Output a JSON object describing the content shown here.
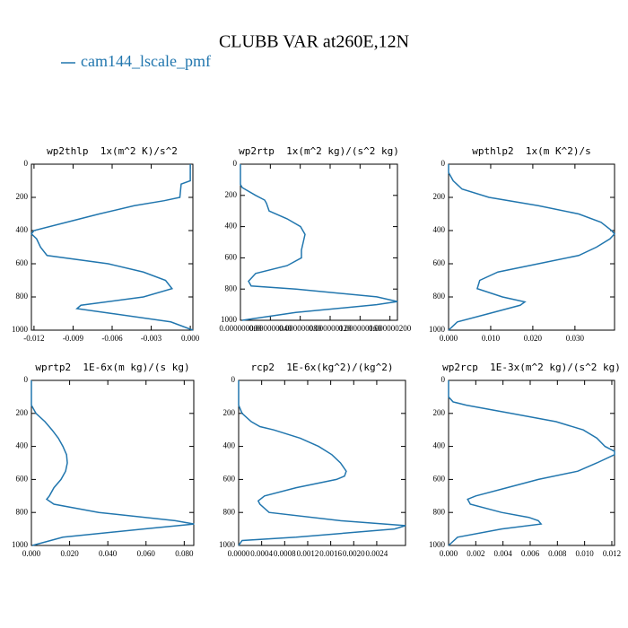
{
  "title": "CLUBB VAR at260E,12N",
  "chart_data": [
    {
      "type": "line",
      "title": "wp2thlp  1x(m^2 K)/s^2",
      "y": [
        0,
        100,
        120,
        200,
        220,
        250,
        300,
        350,
        400,
        420,
        450,
        500,
        550,
        600,
        650,
        700,
        750,
        800,
        850,
        870,
        900,
        950,
        1000
      ],
      "series": [
        {
          "name": "cam144_lscale_pmf",
          "color": "#2176ae",
          "values": [
            0,
            0,
            -0.0007,
            -0.0008,
            -0.002,
            -0.0043,
            -0.007,
            -0.0095,
            -0.012,
            -0.0122,
            -0.0118,
            -0.0115,
            -0.011,
            -0.0063,
            -0.0036,
            -0.0019,
            -0.0014,
            -0.0036,
            -0.0084,
            -0.0087,
            -0.006,
            -0.0015,
            0.0002
          ]
        }
      ],
      "xlim": [
        -0.0122,
        0.0002
      ],
      "xticks": [
        -0.012,
        -0.009,
        -0.006,
        -0.003,
        {
          "value": 0,
          "label": "0.000"
        }
      ],
      "ylim": [
        1000,
        0
      ],
      "yticks": [
        0,
        200,
        400,
        600,
        800,
        1000
      ]
    },
    {
      "type": "line",
      "title": "wp2rtp  1x(m^2 kg)/(s^2 kg)",
      "y": [
        0,
        130,
        150,
        200,
        230,
        250,
        300,
        350,
        400,
        450,
        500,
        550,
        600,
        650,
        700,
        750,
        780,
        800,
        850,
        880,
        900,
        950,
        1000
      ],
      "series": [
        {
          "name": "cam144_lscale_pmf",
          "color": "#2176ae",
          "values": [
            0,
            0,
            2.4e-09,
            2.04e-08,
            3.24e-08,
            3.48e-08,
            3.84e-08,
            6.24e-08,
            8.04e-08,
            8.64e-08,
            8.4e-08,
            8.16e-08,
            8.16e-08,
            6.24e-08,
            2.04e-08,
            1.08e-08,
            1.44e-08,
            7.44e-08,
            1.824e-07,
            2.1e-07,
            1.82e-07,
            7.4e-08,
            2.4e-09
          ]
        }
      ],
      "xlim": [
        0,
        2.1e-07
      ],
      "xticks": [
        {
          "value": 0,
          "label": "0.000000000"
        },
        {
          "value": 4e-08,
          "label": "0.000000040"
        },
        {
          "value": 8e-08,
          "label": "0.000000080"
        },
        {
          "value": 1.2e-07,
          "label": "0.000000120"
        },
        {
          "value": 1.6e-07,
          "label": "0.000000160"
        },
        {
          "value": 2e-07,
          "label": "0.000000200"
        }
      ],
      "ylim": [
        1000,
        0
      ],
      "yticks": [
        0,
        200,
        400,
        600,
        800,
        1000
      ]
    },
    {
      "type": "line",
      "title": "wpthlp2  1x(m K^2)/s",
      "y": [
        0,
        50,
        100,
        150,
        200,
        250,
        300,
        350,
        400,
        420,
        450,
        500,
        550,
        600,
        650,
        700,
        750,
        800,
        830,
        850,
        900,
        950,
        1000
      ],
      "series": [
        {
          "name": "cam144_lscale_pmf",
          "color": "#2176ae",
          "values": [
            0,
            0,
            0.0011,
            0.0032,
            0.0096,
            0.0213,
            0.0309,
            0.0362,
            0.0387,
            0.0394,
            0.0383,
            0.0351,
            0.0309,
            0.0213,
            0.0117,
            0.0074,
            0.0068,
            0.0128,
            0.0181,
            0.017,
            0.0096,
            0.0021,
            0
          ]
        }
      ],
      "xlim": [
        0,
        0.0394
      ],
      "xticks": [
        {
          "value": 0,
          "label": "0.000"
        },
        {
          "value": 0.01,
          "label": "0.010"
        },
        {
          "value": 0.02,
          "label": "0.020"
        },
        {
          "value": 0.03,
          "label": "0.030"
        }
      ],
      "ylim": [
        1000,
        0
      ],
      "yticks": [
        0,
        200,
        400,
        600,
        800,
        1000
      ]
    },
    {
      "type": "line",
      "title": "wprtp2  1E-6x(m kg)/(s kg)",
      "y": [
        0,
        150,
        200,
        250,
        300,
        350,
        400,
        450,
        500,
        550,
        600,
        650,
        700,
        720,
        750,
        800,
        850,
        870,
        900,
        950,
        1000
      ],
      "series": [
        {
          "name": "cam144_lscale_pmf",
          "color": "#2176ae",
          "values": [
            0,
            0,
            0.0024,
            0.0071,
            0.0108,
            0.0141,
            0.0165,
            0.0184,
            0.0188,
            0.0179,
            0.0155,
            0.0118,
            0.0094,
            0.008,
            0.0118,
            0.0353,
            0.0753,
            0.0852,
            0.0588,
            0.0165,
            0.0005
          ]
        }
      ],
      "xlim": [
        0,
        0.085
      ],
      "xticks": [
        {
          "value": 0,
          "label": "0.000"
        },
        {
          "value": 0.02,
          "label": "0.020"
        },
        {
          "value": 0.04,
          "label": "0.040"
        },
        {
          "value": 0.06,
          "label": "0.060"
        },
        {
          "value": 0.08,
          "label": "0.080"
        }
      ],
      "ylim": [
        1000,
        0
      ],
      "yticks": [
        0,
        200,
        400,
        600,
        800,
        1000
      ]
    },
    {
      "type": "line",
      "title": "rcp2  1E-6x(kg^2)/(kg^2)",
      "y": [
        0,
        150,
        200,
        250,
        280,
        300,
        350,
        400,
        450,
        500,
        550,
        580,
        600,
        650,
        700,
        730,
        750,
        800,
        850,
        880,
        900,
        950,
        970,
        1000
      ],
      "series": [
        {
          "name": "cam144_lscale_pmf",
          "color": "#2176ae",
          "values": [
            0,
            0,
            6e-05,
            0.00022,
            0.00037,
            0.00061,
            0.00107,
            0.00139,
            0.00162,
            0.00177,
            0.00187,
            0.00184,
            0.0017,
            0.001,
            0.00045,
            0.00034,
            0.00037,
            0.00053,
            0.00177,
            0.0029,
            0.00271,
            0.001,
            6e-05,
            0
          ]
        }
      ],
      "xlim": [
        0,
        0.0029
      ],
      "xticks": [
        {
          "value": 0,
          "label": "0.0000"
        },
        0.0004,
        0.0008,
        0.0012,
        0.0016,
        {
          "value": 0.002,
          "label": "0.0020"
        },
        0.0024
      ],
      "ylim": [
        1000,
        0
      ],
      "yticks": [
        0,
        200,
        400,
        600,
        800,
        1000
      ]
    },
    {
      "type": "line",
      "title": "wp2rcp  1E-3x(m^2 kg)/(s^2 kg)",
      "y": [
        0,
        100,
        130,
        150,
        200,
        250,
        300,
        350,
        400,
        430,
        450,
        500,
        550,
        600,
        650,
        700,
        720,
        750,
        800,
        830,
        850,
        870,
        900,
        950,
        1000
      ],
      "series": [
        {
          "name": "cam144_lscale_pmf",
          "color": "#2176ae",
          "values": [
            0,
            0,
            0.00033,
            0.0013,
            0.0046,
            0.0079,
            0.0099,
            0.0109,
            0.0115,
            0.0122,
            0.0122,
            0.0109,
            0.0095,
            0.0066,
            0.0043,
            0.002,
            0.0014,
            0.0016,
            0.0039,
            0.0059,
            0.0066,
            0.0068,
            0.0039,
            0.00066,
            0
          ]
        }
      ],
      "xlim": [
        0,
        0.0122
      ],
      "xticks": [
        {
          "value": 0,
          "label": "0.000"
        },
        0.002,
        0.004,
        0.006,
        0.008,
        {
          "value": 0.01,
          "label": "0.010"
        },
        0.012
      ],
      "ylim": [
        1000,
        0
      ],
      "yticks": [
        0,
        200,
        400,
        600,
        800,
        1000
      ]
    }
  ]
}
